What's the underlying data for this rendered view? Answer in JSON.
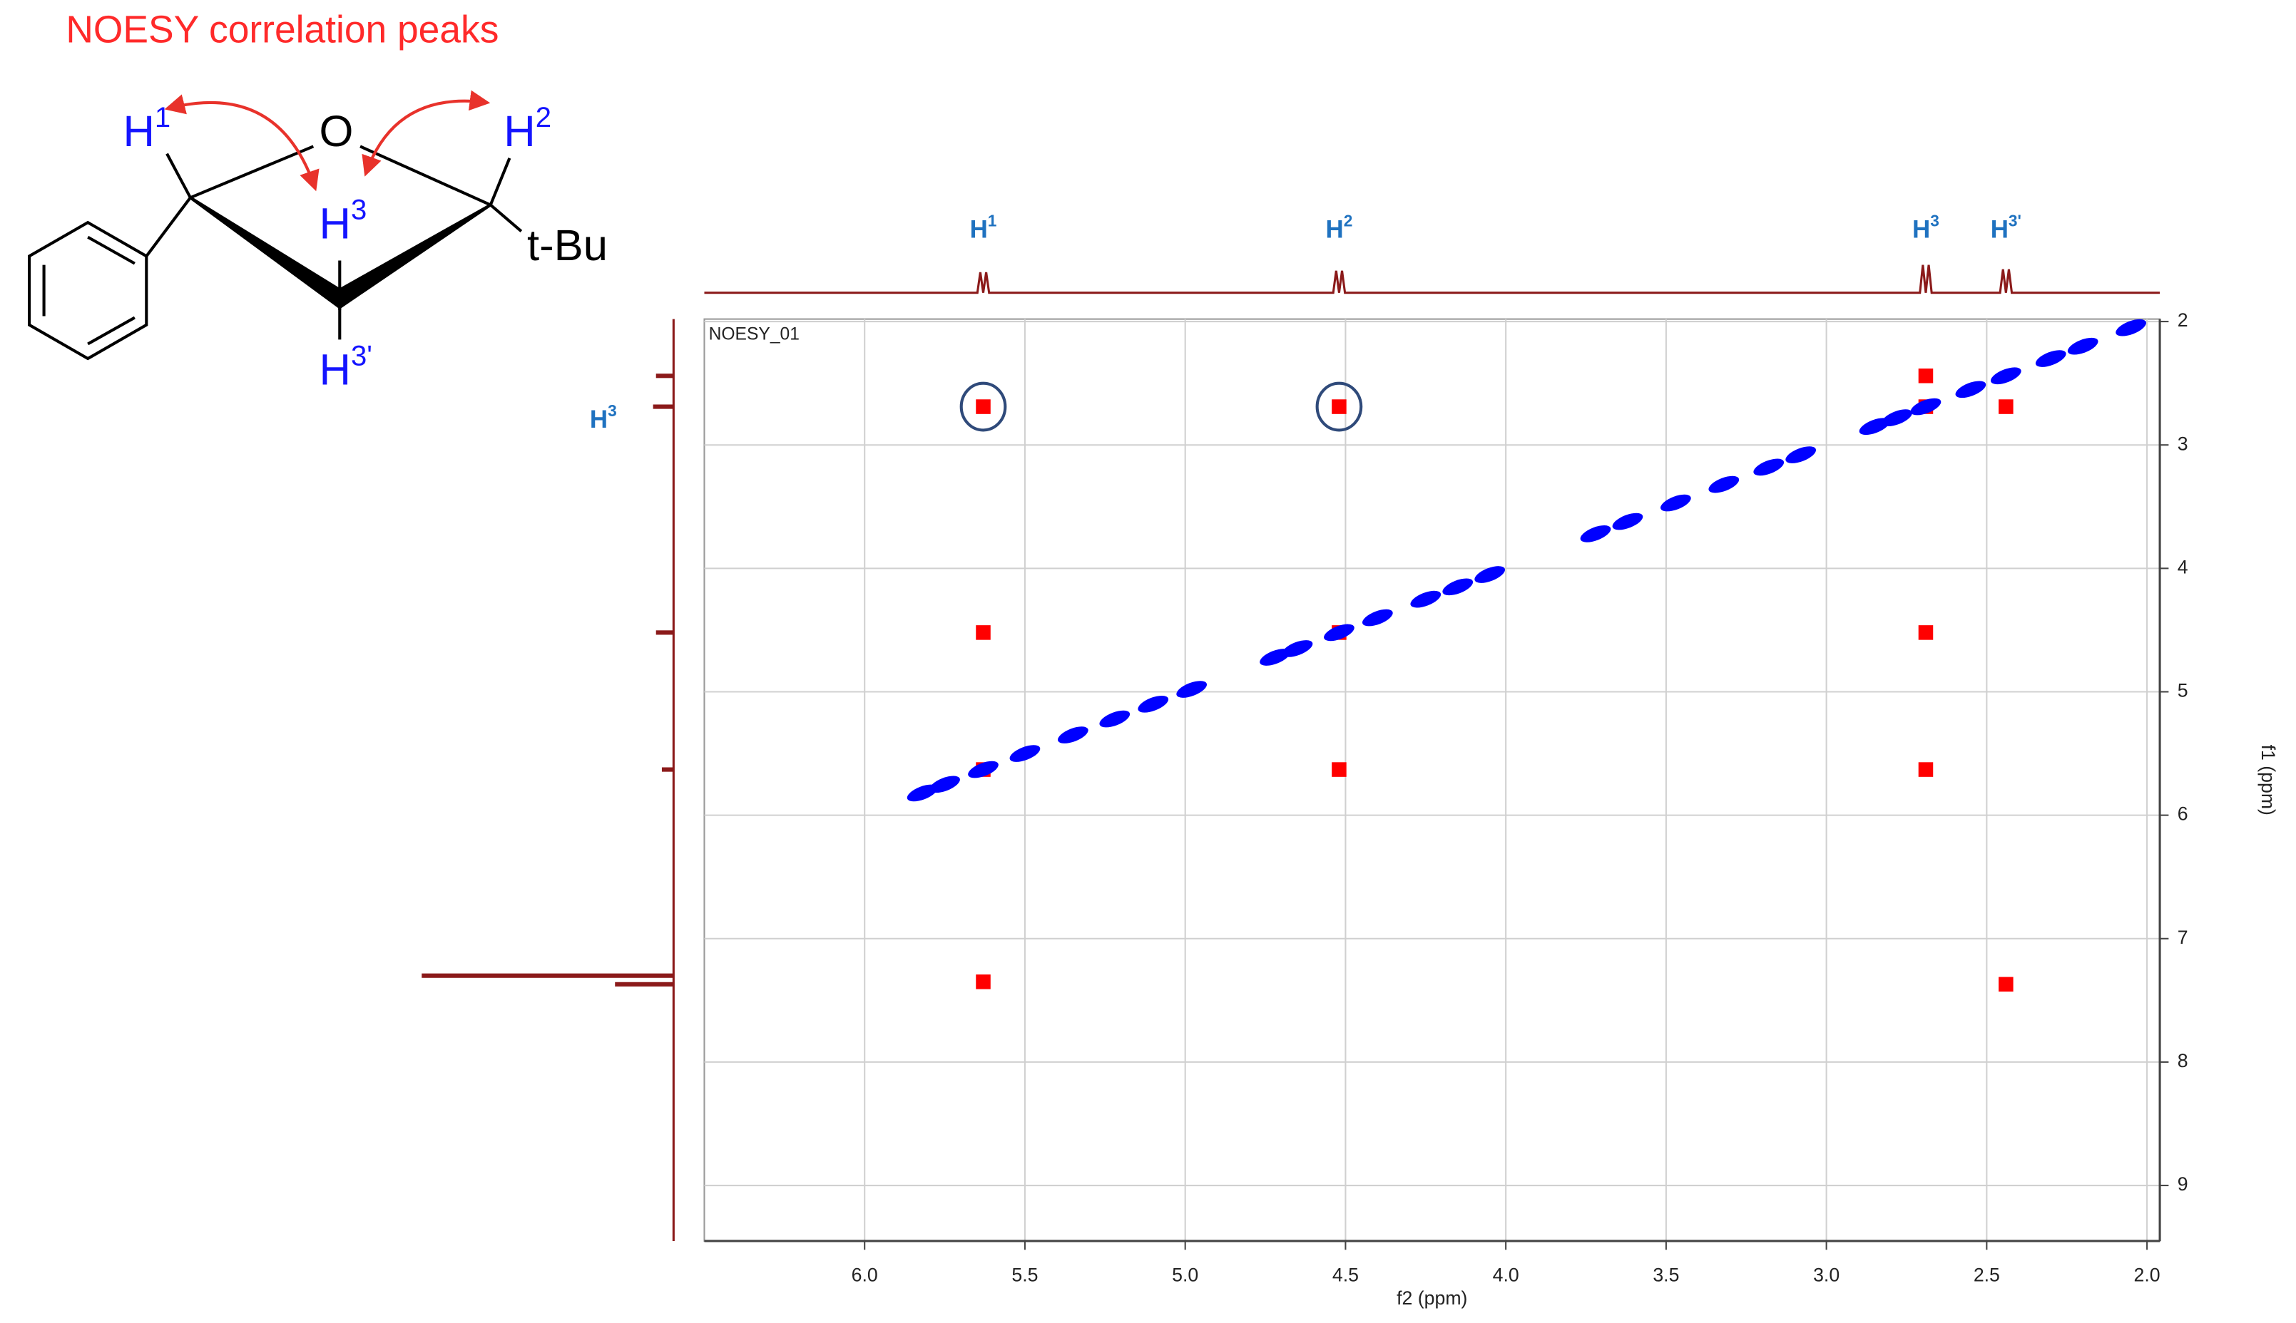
{
  "title": "NOESY correlation peaks",
  "molecule": {
    "labels": [
      {
        "base": "H",
        "sup": "1"
      },
      {
        "base": "O"
      },
      {
        "base": "H",
        "sup": "2"
      },
      {
        "base": "H",
        "sup": "3"
      },
      {
        "base": "t-Bu"
      },
      {
        "base": "H",
        "sup": "3'"
      }
    ]
  },
  "chart_data": {
    "type": "scatter",
    "annotation": "NOESY_01",
    "xlabel": "f2 (ppm)",
    "ylabel": "f1 (ppm)",
    "xlim": [
      6.5,
      1.96
    ],
    "ylim": [
      1.98,
      9.45
    ],
    "xticks": [
      {
        "value": 6,
        "label": "6.0"
      },
      {
        "value": 5.5,
        "label": "5.5"
      },
      {
        "value": 5,
        "label": "5.0"
      },
      {
        "value": 4.5,
        "label": "4.5"
      },
      {
        "value": 4,
        "label": "4.0"
      },
      {
        "value": 3.5,
        "label": "3.5"
      },
      {
        "value": 3,
        "label": "3.0"
      },
      {
        "value": 2.5,
        "label": "2.5"
      },
      {
        "value": 2,
        "label": "2.0"
      }
    ],
    "yticks": [
      2,
      3,
      4,
      5,
      6,
      7,
      8,
      9
    ],
    "grid": true,
    "series": [
      {
        "color": "#ff0000",
        "x": [
          5.63,
          4.52,
          5.63,
          2.69,
          4.52,
          2.69,
          5.63,
          2.44,
          2.69,
          2.44,
          2.69,
          4.52,
          5.63
        ],
        "values": [
          2.69,
          2.69,
          4.52,
          4.52,
          5.63,
          5.63,
          7.35,
          7.37,
          2.44,
          2.69,
          2.69,
          4.52,
          5.63
        ]
      },
      {
        "color": "#0000ff",
        "x": [
          5.82,
          5.75,
          5.63,
          5.5,
          5.35,
          5.22,
          5.1,
          4.98,
          4.72,
          4.65,
          4.52,
          4.4,
          4.25,
          4.15,
          4.05,
          3.72,
          3.62,
          3.47,
          3.32,
          3.18,
          3.08,
          2.85,
          2.78,
          2.69,
          2.55,
          2.44,
          2.3,
          2.2,
          2.05
        ],
        "values": [
          5.82,
          5.75,
          5.63,
          5.5,
          5.35,
          5.22,
          5.1,
          4.98,
          4.72,
          4.65,
          4.52,
          4.4,
          4.25,
          4.15,
          4.05,
          3.72,
          3.62,
          3.47,
          3.32,
          3.18,
          3.08,
          2.85,
          2.78,
          2.69,
          2.55,
          2.44,
          2.3,
          2.2,
          2.05
        ]
      }
    ],
    "highlighted": [
      0,
      1
    ],
    "peak_labels": [
      {
        "base": "H",
        "sup": "1",
        "x": 5.63
      },
      {
        "base": "H",
        "sup": "2",
        "x": 4.52
      },
      {
        "base": "H",
        "sup": "3",
        "x": 2.69
      },
      {
        "base": "H",
        "sup": "3'",
        "x": 2.44
      }
    ],
    "f1_peak_labels": [
      {
        "base": "H",
        "sup": "3",
        "y": 2.69
      }
    ],
    "projection_color": "#8b1a1a",
    "f2_projection": {
      "x": [
        5.63,
        4.52,
        2.69,
        2.44
      ],
      "values": [
        14,
        15,
        19,
        16
      ]
    },
    "f1_projection": {
      "y": [
        2.44,
        2.69,
        4.52,
        5.63,
        7.3,
        7.37
      ],
      "values": [
        12,
        14,
        12,
        8,
        172,
        40
      ]
    }
  }
}
